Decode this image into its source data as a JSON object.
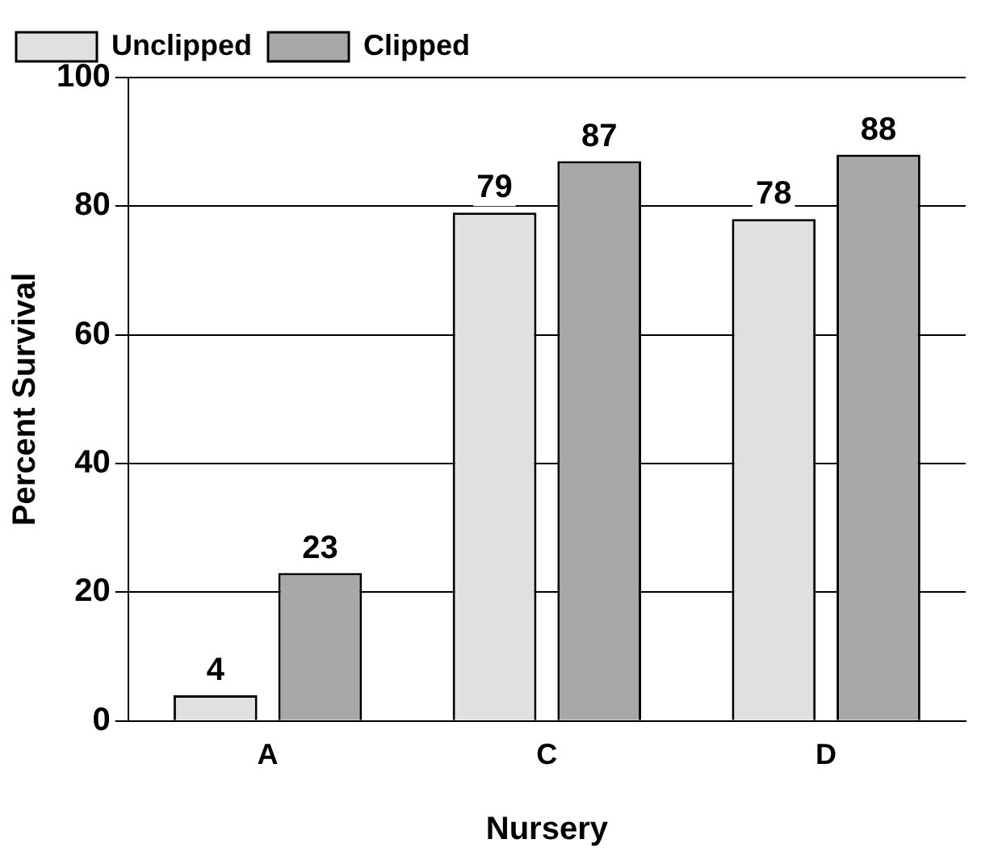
{
  "chart_data": {
    "type": "bar",
    "xlabel": "Nursery",
    "ylabel": "Percent Survival",
    "categories": [
      "A",
      "C",
      "D"
    ],
    "series": [
      {
        "name": "Unclipped",
        "color": "#e0e0e0",
        "values": [
          4,
          79,
          78
        ]
      },
      {
        "name": "Clipped",
        "color": "#a8a8a8",
        "values": [
          23,
          87,
          88
        ]
      }
    ],
    "ylim": [
      0,
      100
    ],
    "yticks": [
      0,
      20,
      40,
      60,
      80,
      100
    ],
    "grid": "y",
    "legend": "top left",
    "data_labels": true
  }
}
